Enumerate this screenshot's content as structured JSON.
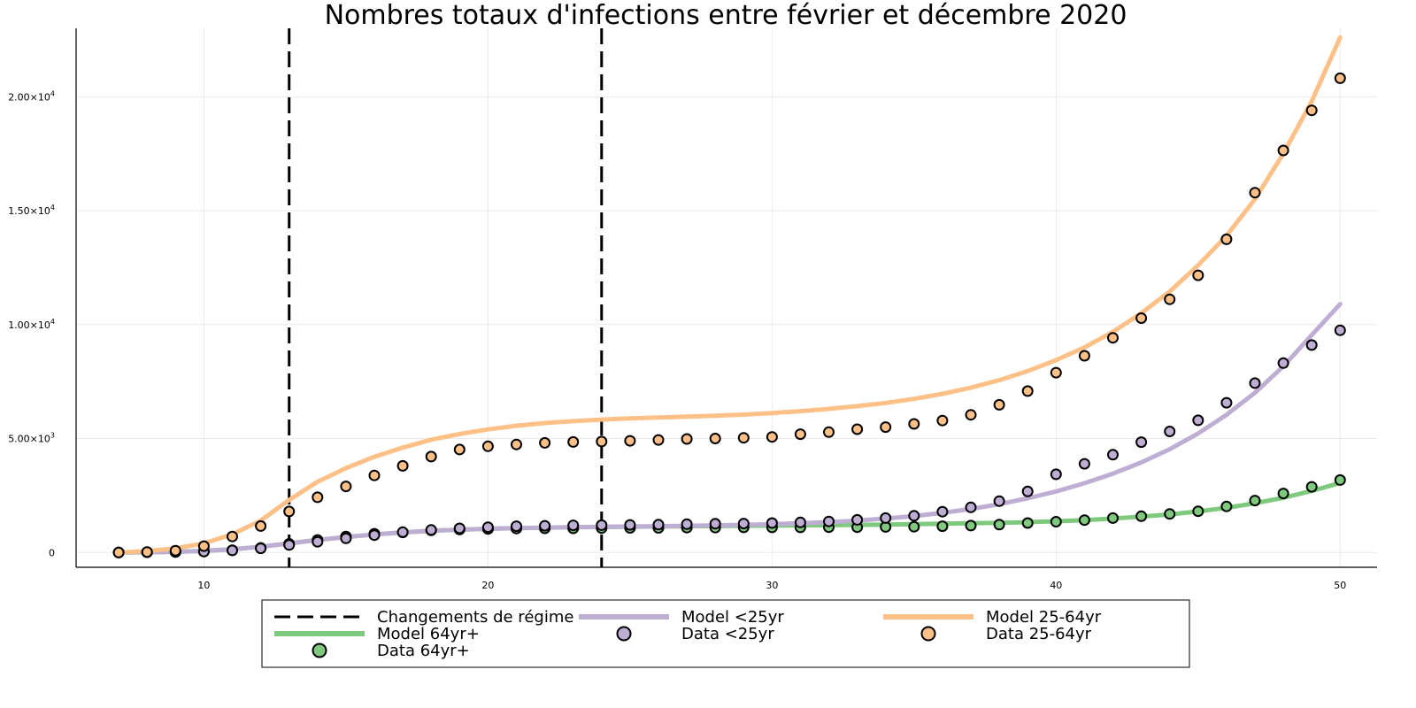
{
  "chart_data": {
    "type": "line",
    "title": "Nombres totaux d'infections entre février et décembre 2020",
    "xlabel": "",
    "ylabel": "",
    "xlim": [
      5.5,
      51.3
    ],
    "ylim": [
      -650,
      23000
    ],
    "grid": true,
    "legend_position": "bottom",
    "x_ticks": [
      {
        "value": 10,
        "label": "10"
      },
      {
        "value": 20,
        "label": "20"
      },
      {
        "value": 30,
        "label": "30"
      },
      {
        "value": 40,
        "label": "40"
      },
      {
        "value": 50,
        "label": "50"
      }
    ],
    "y_ticks": [
      {
        "value": 0,
        "mantissa": "0",
        "exp": ""
      },
      {
        "value": 5000,
        "mantissa": "5.00×10",
        "exp": "3"
      },
      {
        "value": 10000,
        "mantissa": "1.00×10",
        "exp": "4"
      },
      {
        "value": 15000,
        "mantissa": "1.50×10",
        "exp": "4"
      },
      {
        "value": 20000,
        "mantissa": "2.00×10",
        "exp": "4"
      }
    ],
    "regime_changes": {
      "name": "Changements de régime",
      "x": [
        13,
        24
      ],
      "color": "#000000"
    },
    "series": [
      {
        "name": "Model 64yr+",
        "kind": "line",
        "color": "#7fc97f",
        "x": [
          7,
          8,
          9,
          10,
          11,
          12,
          13,
          14,
          15,
          16,
          17,
          18,
          19,
          20,
          21,
          22,
          23,
          24,
          25,
          26,
          27,
          28,
          29,
          30,
          31,
          32,
          33,
          34,
          35,
          36,
          37,
          38,
          39,
          40,
          41,
          42,
          43,
          44,
          45,
          46,
          47,
          48,
          49,
          50
        ],
        "y": [
          0,
          10,
          30,
          70,
          140,
          250,
          400,
          550,
          680,
          790,
          880,
          950,
          1000,
          1040,
          1070,
          1090,
          1110,
          1120,
          1130,
          1140,
          1150,
          1160,
          1170,
          1180,
          1190,
          1200,
          1210,
          1220,
          1240,
          1260,
          1280,
          1300,
          1330,
          1370,
          1420,
          1490,
          1570,
          1670,
          1800,
          1960,
          2160,
          2400,
          2700,
          3050
        ]
      },
      {
        "name": "Data 64yr+",
        "kind": "scatter",
        "color": "#7fc97f",
        "x": [
          7,
          8,
          9,
          10,
          11,
          12,
          13,
          14,
          15,
          16,
          17,
          18,
          19,
          20,
          21,
          22,
          23,
          24,
          25,
          26,
          27,
          28,
          29,
          30,
          31,
          32,
          33,
          34,
          35,
          36,
          37,
          38,
          39,
          40,
          41,
          42,
          43,
          44,
          45,
          46,
          47,
          48,
          49,
          50
        ],
        "y": [
          0,
          10,
          20,
          40,
          100,
          200,
          380,
          550,
          700,
          820,
          880,
          970,
          1010,
          1030,
          1050,
          1060,
          1060,
          1070,
          1080,
          1080,
          1090,
          1090,
          1100,
          1100,
          1100,
          1110,
          1110,
          1120,
          1130,
          1150,
          1180,
          1220,
          1290,
          1350,
          1420,
          1510,
          1590,
          1690,
          1810,
          2020,
          2280,
          2590,
          2880,
          3180
        ]
      },
      {
        "name": "Model <25yr",
        "kind": "line",
        "color": "#beaed4",
        "x": [
          7,
          8,
          9,
          10,
          11,
          12,
          13,
          14,
          15,
          16,
          17,
          18,
          19,
          20,
          21,
          22,
          23,
          24,
          25,
          26,
          27,
          28,
          29,
          30,
          31,
          32,
          33,
          34,
          35,
          36,
          37,
          38,
          39,
          40,
          41,
          42,
          43,
          44,
          45,
          46,
          47,
          48,
          49,
          50
        ],
        "y": [
          0,
          10,
          30,
          70,
          140,
          250,
          400,
          550,
          680,
          790,
          880,
          950,
          1000,
          1040,
          1070,
          1090,
          1110,
          1130,
          1140,
          1150,
          1170,
          1190,
          1210,
          1240,
          1280,
          1330,
          1400,
          1490,
          1600,
          1740,
          1910,
          2120,
          2380,
          2680,
          3040,
          3460,
          3950,
          4530,
          5220,
          6040,
          7010,
          8170,
          9540,
          10900
        ]
      },
      {
        "name": "Data <25yr",
        "kind": "scatter",
        "color": "#beaed4",
        "x": [
          7,
          8,
          9,
          10,
          11,
          12,
          13,
          14,
          15,
          16,
          17,
          18,
          19,
          20,
          21,
          22,
          23,
          24,
          25,
          26,
          27,
          28,
          29,
          30,
          31,
          32,
          33,
          34,
          35,
          36,
          37,
          38,
          39,
          40,
          41,
          42,
          43,
          44,
          45,
          46,
          47,
          48,
          49,
          50
        ],
        "y": [
          0,
          10,
          20,
          40,
          90,
          180,
          330,
          470,
          620,
          760,
          890,
          990,
          1060,
          1110,
          1150,
          1170,
          1190,
          1200,
          1210,
          1220,
          1240,
          1260,
          1270,
          1290,
          1320,
          1360,
          1430,
          1510,
          1610,
          1790,
          1980,
          2250,
          2680,
          3430,
          3890,
          4290,
          4840,
          5310,
          5800,
          6570,
          7430,
          8310,
          9100,
          9750
        ]
      },
      {
        "name": "Model 25-64yr",
        "kind": "line",
        "color": "#fdc086",
        "x": [
          7,
          8,
          9,
          10,
          11,
          12,
          13,
          14,
          15,
          16,
          17,
          18,
          19,
          20,
          21,
          22,
          23,
          24,
          25,
          26,
          27,
          28,
          29,
          30,
          31,
          32,
          33,
          34,
          35,
          36,
          37,
          38,
          39,
          40,
          41,
          42,
          43,
          44,
          45,
          46,
          47,
          48,
          49,
          50
        ],
        "y": [
          0,
          60,
          180,
          400,
          800,
          1400,
          2300,
          3100,
          3700,
          4200,
          4600,
          4950,
          5200,
          5400,
          5560,
          5680,
          5760,
          5830,
          5880,
          5920,
          5960,
          6000,
          6050,
          6120,
          6200,
          6300,
          6420,
          6560,
          6740,
          6960,
          7230,
          7560,
          7960,
          8440,
          9000,
          9680,
          10500,
          11450,
          12600,
          13900,
          15500,
          17500,
          19800,
          22600
        ]
      },
      {
        "name": "Data 25-64yr",
        "kind": "scatter",
        "color": "#fdc086",
        "x": [
          7,
          8,
          9,
          10,
          11,
          12,
          13,
          14,
          15,
          16,
          17,
          18,
          19,
          20,
          21,
          22,
          23,
          24,
          25,
          26,
          27,
          28,
          29,
          30,
          31,
          32,
          33,
          34,
          35,
          36,
          37,
          38,
          39,
          40,
          41,
          42,
          43,
          44,
          45,
          46,
          47,
          48,
          49,
          50
        ],
        "y": [
          0,
          20,
          80,
          280,
          700,
          1160,
          1800,
          2420,
          2900,
          3380,
          3800,
          4210,
          4520,
          4660,
          4740,
          4810,
          4850,
          4870,
          4900,
          4940,
          4980,
          5000,
          5030,
          5070,
          5190,
          5280,
          5410,
          5500,
          5640,
          5790,
          6040,
          6480,
          7080,
          7890,
          8630,
          9420,
          10280,
          11110,
          12160,
          13740,
          15790,
          17640,
          19400,
          20810
        ]
      }
    ],
    "legend": [
      {
        "kind": "dash",
        "label": "Changements de régime",
        "color": "#000000"
      },
      {
        "kind": "line",
        "label": "Model <25yr",
        "color": "#beaed4"
      },
      {
        "kind": "line",
        "label": "Model 25-64yr",
        "color": "#fdc086"
      },
      {
        "kind": "line",
        "label": "Model 64yr+",
        "color": "#7fc97f"
      },
      {
        "kind": "marker",
        "label": "Data <25yr",
        "color": "#beaed4"
      },
      {
        "kind": "marker",
        "label": "Data 25-64yr",
        "color": "#fdc086"
      },
      {
        "kind": "marker",
        "label": "Data 64yr+",
        "color": "#7fc97f"
      }
    ]
  }
}
